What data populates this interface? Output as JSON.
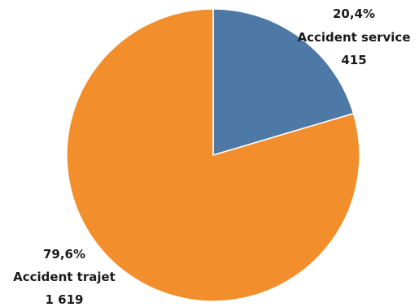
{
  "chart_data": {
    "type": "pie",
    "title": "",
    "slices": [
      {
        "name": "Accident service",
        "value": 415,
        "percent_label": "20,4%",
        "value_label": "415",
        "color": "#4e79a7"
      },
      {
        "name": "Accident trajet",
        "value": 1619,
        "percent_label": "79,6%",
        "value_label": "1 619",
        "color": "#f28e2b"
      }
    ],
    "start_angle": "12 o'clock",
    "direction": "clockwise"
  }
}
